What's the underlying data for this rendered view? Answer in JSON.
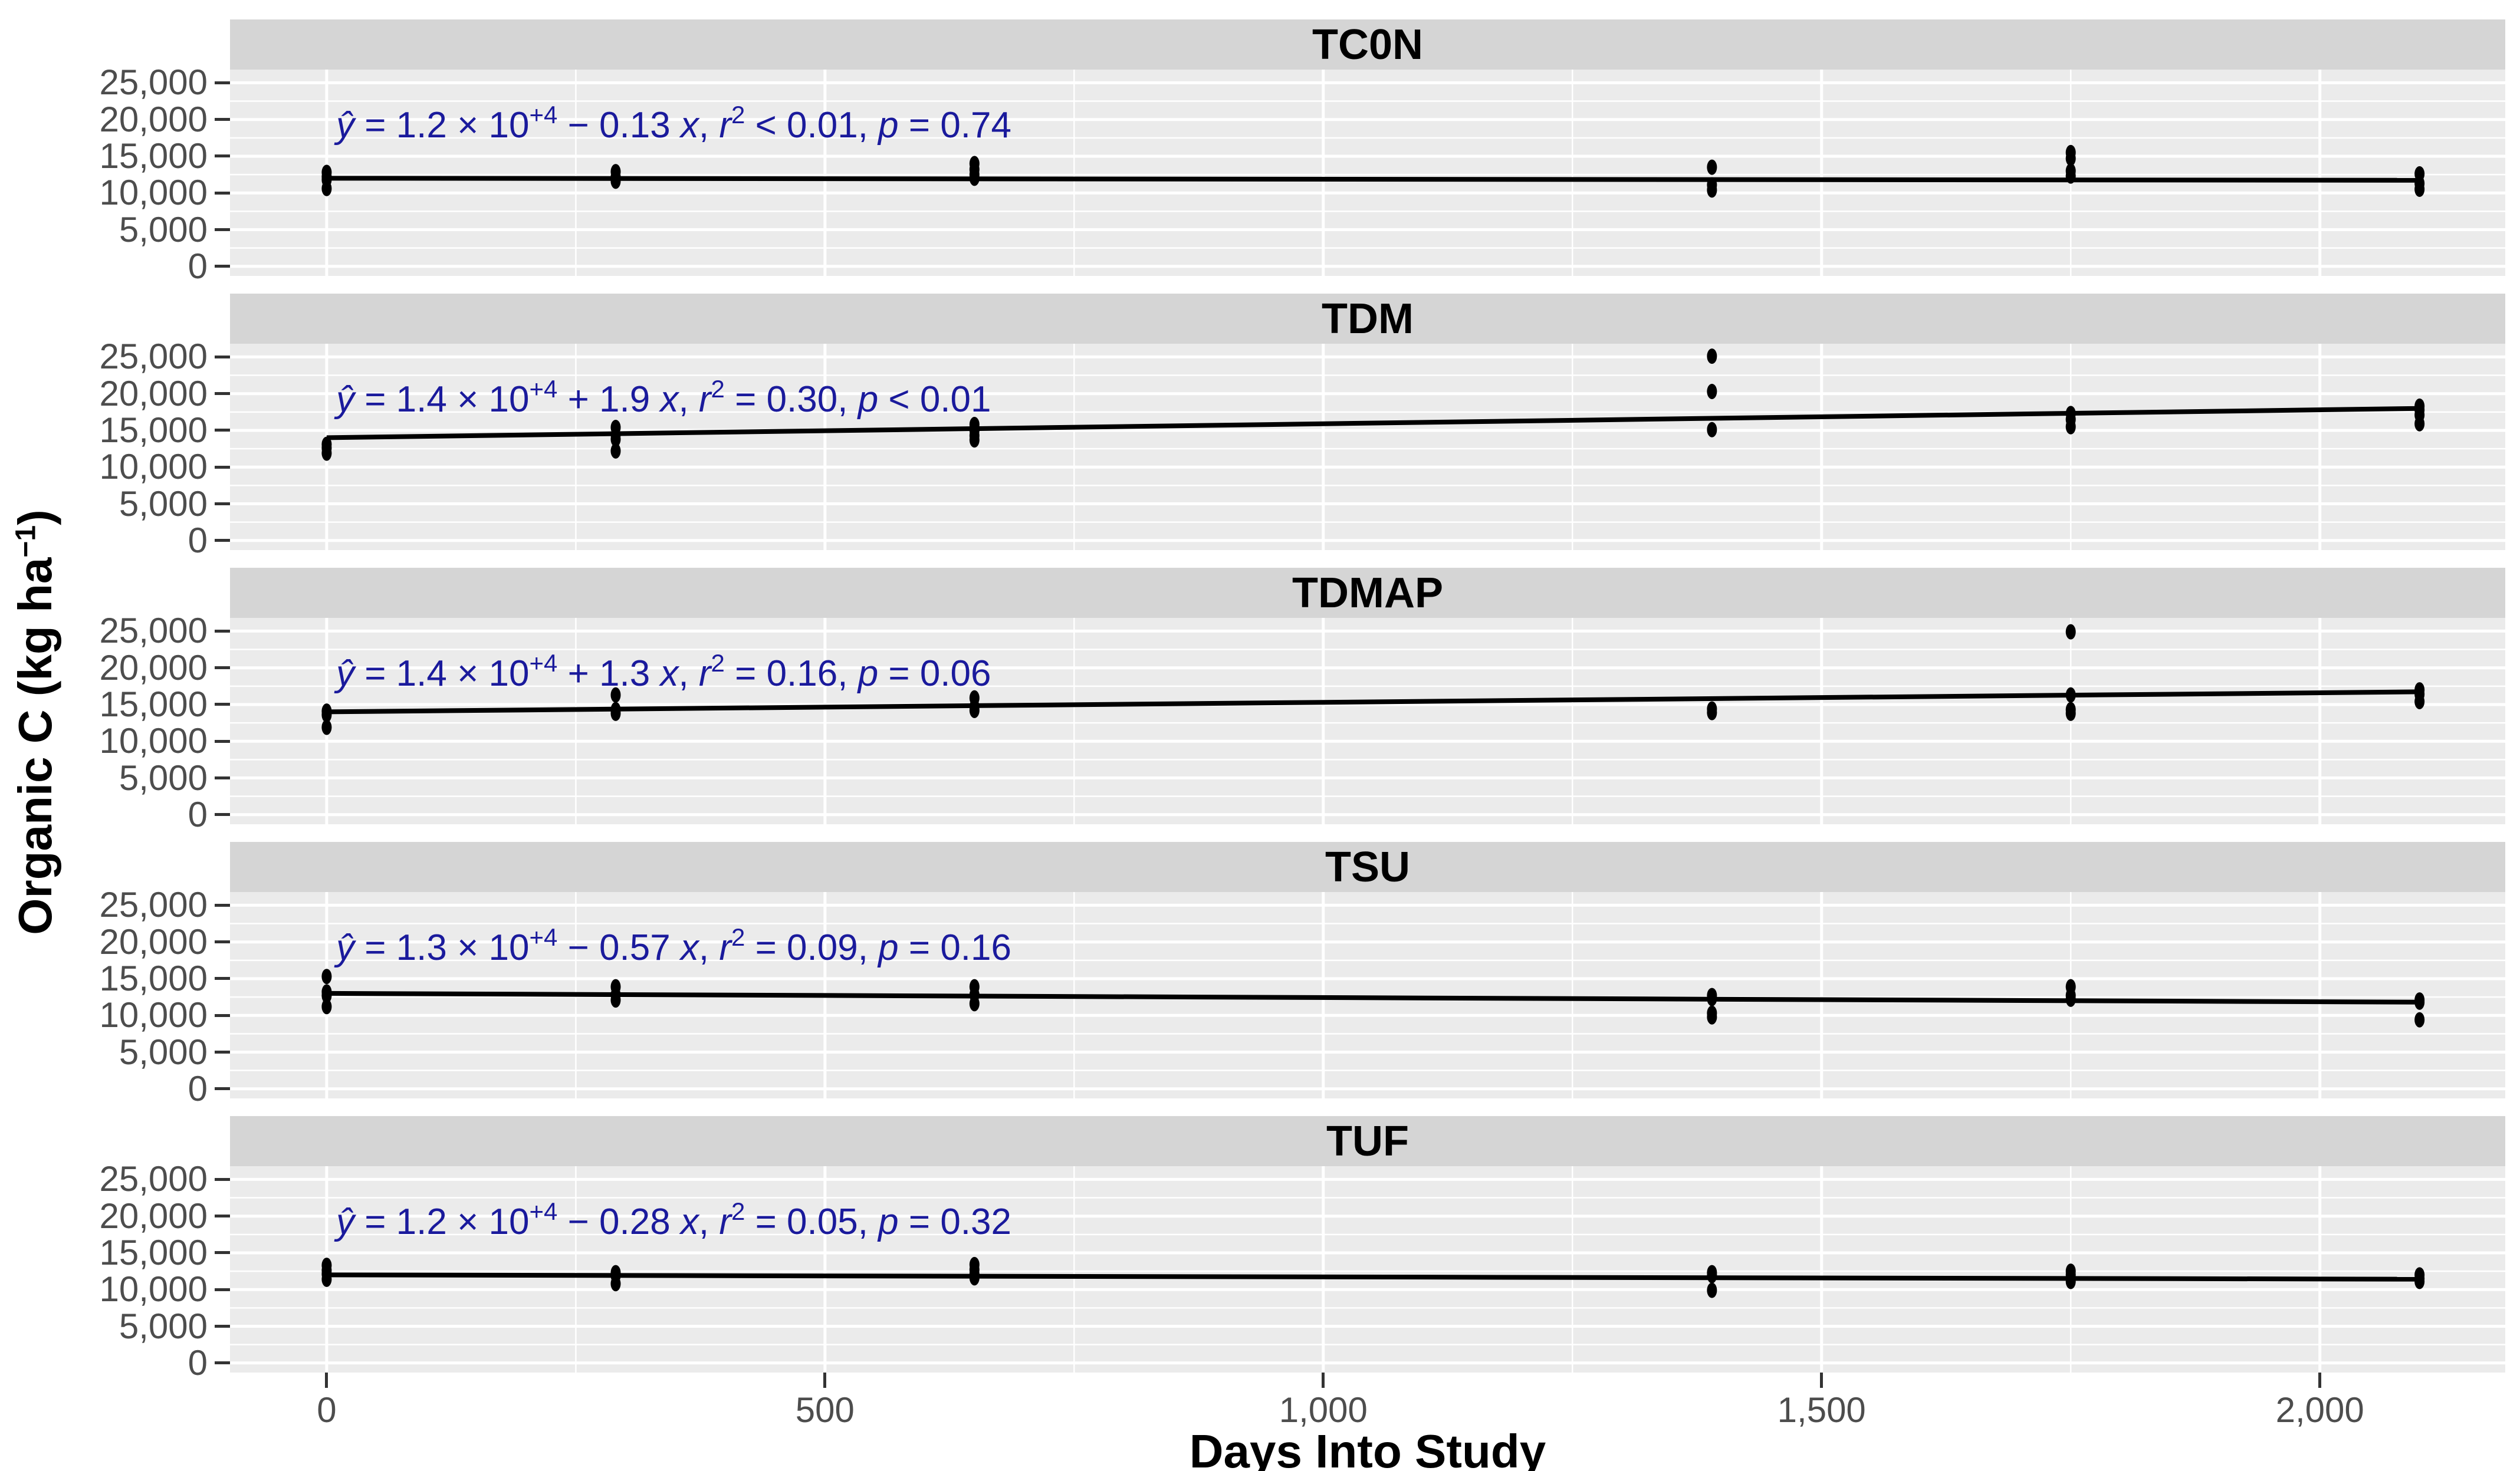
{
  "chart_data": {
    "type": "scatter",
    "description_visible": "Faceted scatter plots of organic carbon over days into study with linear regression lines and regression equations",
    "x_axis": {
      "label": "Days Into Study",
      "range": [
        -97,
        2186
      ],
      "major_ticks": [
        0,
        500,
        1000,
        1500,
        2000
      ],
      "tick_labels": [
        "0",
        "500",
        "1,000",
        "1,500",
        "2,000"
      ],
      "minor_gridlines": [
        250,
        750,
        1250,
        1750
      ]
    },
    "y_axis": {
      "label": "Organic C (kg ha⁻¹)",
      "label_segments": [
        {
          "t": "Organic C (kg ha"
        },
        {
          "t": "−1",
          "sup": true
        },
        {
          "t": ")"
        }
      ],
      "range": [
        -1300,
        26800
      ],
      "major_ticks": [
        25000,
        20000,
        15000,
        10000,
        5000,
        0
      ],
      "tick_labels": [
        "25,000",
        "20,000",
        "15,000",
        "10,000",
        "5,000",
        "0"
      ],
      "minor_gridlines": [
        2500,
        7500,
        12500,
        17500,
        22500
      ]
    },
    "panels": [
      {
        "title": "TC0N",
        "equation_text": "ŷ = 1.2 × 10⁺⁴ − 0.13 x, r² < 0.01, p = 0.74",
        "equation_segments": [
          {
            "t": "ŷ",
            "i": true
          },
          {
            "t": " = 1.2 × 10"
          },
          {
            "t": "+4",
            "sup": true
          },
          {
            "t": " − 0.13 "
          },
          {
            "t": "x",
            "i": true
          },
          {
            "t": ", "
          },
          {
            "t": "r",
            "i": true
          },
          {
            "t": "2",
            "sup": true
          },
          {
            "t": " < 0.01, "
          },
          {
            "t": "p",
            "i": true
          },
          {
            "t": " = 0.74"
          }
        ],
        "fit": {
          "intercept": 12000,
          "slope": -0.13,
          "x_range": [
            0,
            2100
          ]
        },
        "points": [
          [
            0,
            12800
          ],
          [
            0,
            12200
          ],
          [
            0,
            11800
          ],
          [
            0,
            10600
          ],
          [
            290,
            12900
          ],
          [
            290,
            12200
          ],
          [
            290,
            11600
          ],
          [
            650,
            14000
          ],
          [
            650,
            13200
          ],
          [
            650,
            12500
          ],
          [
            650,
            12000
          ],
          [
            1390,
            13500
          ],
          [
            1390,
            11100
          ],
          [
            1390,
            10400
          ],
          [
            1750,
            15500
          ],
          [
            1750,
            14700
          ],
          [
            1750,
            13000
          ],
          [
            1750,
            12300
          ],
          [
            2100,
            12600
          ],
          [
            2100,
            11300
          ],
          [
            2100,
            10500
          ]
        ]
      },
      {
        "title": "TDM",
        "equation_text": "ŷ = 1.4 × 10⁺⁴ + 1.9 x, r² = 0.30, p < 0.01",
        "equation_segments": [
          {
            "t": "ŷ",
            "i": true
          },
          {
            "t": " = 1.4 × 10"
          },
          {
            "t": "+4",
            "sup": true
          },
          {
            "t": " + 1.9 "
          },
          {
            "t": "x",
            "i": true
          },
          {
            "t": ", "
          },
          {
            "t": "r",
            "i": true
          },
          {
            "t": "2",
            "sup": true
          },
          {
            "t": " = 0.30, "
          },
          {
            "t": "p",
            "i": true
          },
          {
            "t": " < 0.01"
          }
        ],
        "fit": {
          "intercept": 14000,
          "slope": 1.9,
          "x_range": [
            0,
            2100
          ]
        },
        "points": [
          [
            0,
            13100
          ],
          [
            0,
            12600
          ],
          [
            0,
            11900
          ],
          [
            290,
            15400
          ],
          [
            290,
            14400
          ],
          [
            290,
            13800
          ],
          [
            290,
            12200
          ],
          [
            650,
            15800
          ],
          [
            650,
            15000
          ],
          [
            650,
            14300
          ],
          [
            650,
            13700
          ],
          [
            1390,
            25100
          ],
          [
            1390,
            20300
          ],
          [
            1390,
            15100
          ],
          [
            1750,
            17300
          ],
          [
            1750,
            16500
          ],
          [
            1750,
            15500
          ],
          [
            2100,
            18300
          ],
          [
            2100,
            17800
          ],
          [
            2100,
            17100
          ],
          [
            2100,
            15900
          ]
        ]
      },
      {
        "title": "TDMAP",
        "equation_text": "ŷ = 1.4 × 10⁺⁴ + 1.3 x, r² = 0.16, p = 0.06",
        "equation_segments": [
          {
            "t": "ŷ",
            "i": true
          },
          {
            "t": " = 1.4 × 10"
          },
          {
            "t": "+4",
            "sup": true
          },
          {
            "t": " + 1.3 "
          },
          {
            "t": "x",
            "i": true
          },
          {
            "t": ", "
          },
          {
            "t": "r",
            "i": true
          },
          {
            "t": "2",
            "sup": true
          },
          {
            "t": " = 0.16, "
          },
          {
            "t": "p",
            "i": true
          },
          {
            "t": " = 0.06"
          }
        ],
        "fit": {
          "intercept": 14000,
          "slope": 1.3,
          "x_range": [
            0,
            2100
          ]
        },
        "points": [
          [
            0,
            14100
          ],
          [
            0,
            13600
          ],
          [
            0,
            11900
          ],
          [
            290,
            16300
          ],
          [
            290,
            14300
          ],
          [
            290,
            13800
          ],
          [
            650,
            15900
          ],
          [
            650,
            14700
          ],
          [
            650,
            14200
          ],
          [
            1390,
            14400
          ],
          [
            1390,
            13900
          ],
          [
            1750,
            24900
          ],
          [
            1750,
            16300
          ],
          [
            1750,
            14300
          ],
          [
            1750,
            13800
          ],
          [
            2100,
            17000
          ],
          [
            2100,
            16400
          ],
          [
            2100,
            15400
          ]
        ]
      },
      {
        "title": "TSU",
        "equation_text": "ŷ = 1.3 × 10⁺⁴ − 0.57 x, r² = 0.09, p = 0.16",
        "equation_segments": [
          {
            "t": "ŷ",
            "i": true
          },
          {
            "t": " = 1.3 × 10"
          },
          {
            "t": "+4",
            "sup": true
          },
          {
            "t": " − 0.57 "
          },
          {
            "t": "x",
            "i": true
          },
          {
            "t": ", "
          },
          {
            "t": "r",
            "i": true
          },
          {
            "t": "2",
            "sup": true
          },
          {
            "t": " = 0.09, "
          },
          {
            "t": "p",
            "i": true
          },
          {
            "t": " = 0.16"
          }
        ],
        "fit": {
          "intercept": 13000,
          "slope": -0.57,
          "x_range": [
            0,
            2100
          ]
        },
        "points": [
          [
            0,
            15300
          ],
          [
            0,
            13200
          ],
          [
            0,
            12700
          ],
          [
            0,
            11200
          ],
          [
            290,
            13900
          ],
          [
            290,
            12800
          ],
          [
            290,
            12100
          ],
          [
            650,
            13900
          ],
          [
            650,
            12800
          ],
          [
            650,
            11600
          ],
          [
            1390,
            12700
          ],
          [
            1390,
            12300
          ],
          [
            1390,
            10300
          ],
          [
            1390,
            9800
          ],
          [
            1750,
            13900
          ],
          [
            1750,
            12700
          ],
          [
            1750,
            12200
          ],
          [
            2100,
            12100
          ],
          [
            2100,
            11800
          ],
          [
            2100,
            9400
          ]
        ]
      },
      {
        "title": "TUF",
        "equation_text": "ŷ = 1.2 × 10⁺⁴ − 0.28 x, r² = 0.05, p = 0.32",
        "equation_segments": [
          {
            "t": "ŷ",
            "i": true
          },
          {
            "t": " = 1.2 × 10"
          },
          {
            "t": "+4",
            "sup": true
          },
          {
            "t": " − 0.28 "
          },
          {
            "t": "x",
            "i": true
          },
          {
            "t": ", "
          },
          {
            "t": "r",
            "i": true
          },
          {
            "t": "2",
            "sup": true
          },
          {
            "t": " = 0.05, "
          },
          {
            "t": "p",
            "i": true
          },
          {
            "t": " = 0.32"
          }
        ],
        "fit": {
          "intercept": 12000,
          "slope": -0.28,
          "x_range": [
            0,
            2100
          ]
        },
        "points": [
          [
            0,
            13300
          ],
          [
            0,
            12600
          ],
          [
            0,
            12100
          ],
          [
            0,
            11400
          ],
          [
            290,
            12300
          ],
          [
            290,
            11900
          ],
          [
            290,
            10800
          ],
          [
            650,
            13400
          ],
          [
            650,
            12700
          ],
          [
            650,
            12100
          ],
          [
            650,
            11600
          ],
          [
            1390,
            12300
          ],
          [
            1390,
            11900
          ],
          [
            1390,
            9900
          ],
          [
            1750,
            12500
          ],
          [
            1750,
            12000
          ],
          [
            1750,
            11500
          ],
          [
            1750,
            11100
          ],
          [
            2100,
            12000
          ],
          [
            2100,
            11500
          ],
          [
            2100,
            11100
          ]
        ]
      }
    ],
    "colors": {
      "panel_background": "#EBEBEB",
      "strip_background": "#D5D5D5",
      "gridline": "#FFFFFF",
      "point": "#000000",
      "regression_line": "#000000",
      "equation_text": "#1A1A9C",
      "tick_label": "#4D4D4D",
      "tick_mark": "#333333",
      "axis_title": "#000000"
    },
    "legend": null,
    "grid": {
      "major": true,
      "minor": true
    }
  }
}
